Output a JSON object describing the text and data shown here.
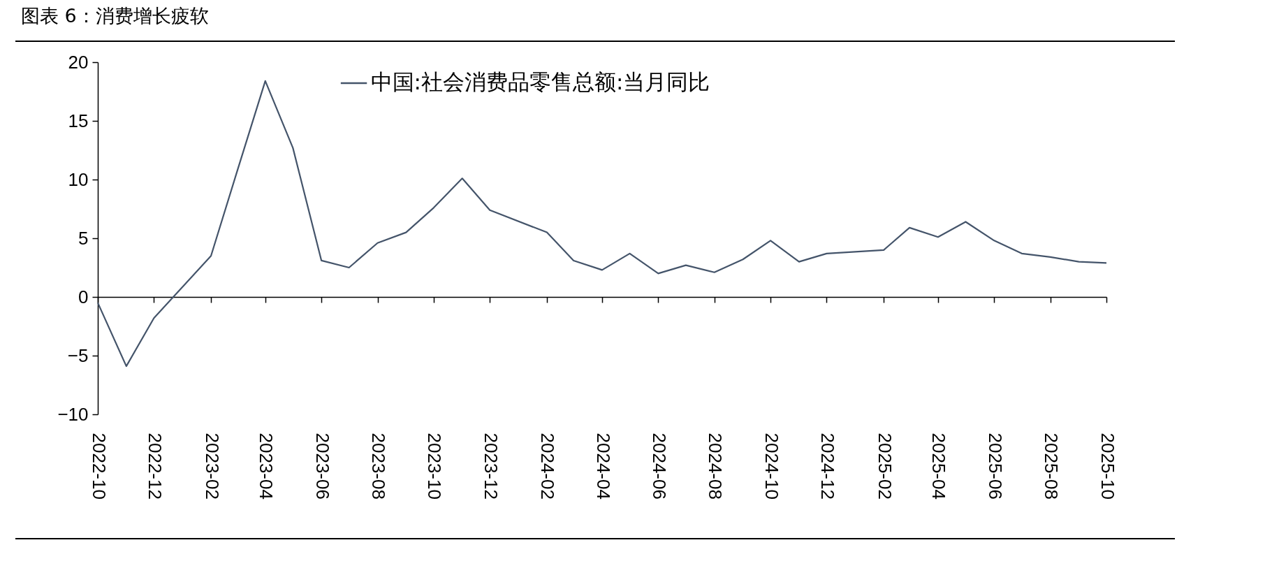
{
  "chart_data": {
    "type": "line",
    "title": "图表 6：消费增长疲软",
    "x": [
      "2022-10",
      "2022-11",
      "2022-12",
      "2023-02",
      "2023-03",
      "2023-04",
      "2023-05",
      "2023-06",
      "2023-07",
      "2023-08",
      "2023-09",
      "2023-10",
      "2023-11",
      "2023-12",
      "2024-02",
      "2024-03",
      "2024-04",
      "2024-05",
      "2024-06",
      "2024-07",
      "2024-08",
      "2024-09",
      "2024-10",
      "2024-11",
      "2024-12",
      "2025-02",
      "2025-03",
      "2025-04",
      "2025-05",
      "2025-06",
      "2025-07",
      "2025-08",
      "2025-09",
      "2025-10"
    ],
    "series": [
      {
        "name": "中国:社会消费品零售总额:当月同比",
        "color": "#44546a",
        "values": [
          -0.5,
          -5.9,
          -1.8,
          3.5,
          10.6,
          18.4,
          12.7,
          3.1,
          2.5,
          4.6,
          5.5,
          7.6,
          10.1,
          7.4,
          5.5,
          3.1,
          2.3,
          3.7,
          2.0,
          2.7,
          2.1,
          3.2,
          4.8,
          3.0,
          3.7,
          4.0,
          5.9,
          5.1,
          6.4,
          4.8,
          3.7,
          3.4,
          3.0,
          2.9
        ]
      }
    ],
    "xlim": [
      "2022-10",
      "2025-10"
    ],
    "xticks": [
      "2022-10",
      "2022-12",
      "2023-02",
      "2023-04",
      "2023-06",
      "2023-08",
      "2023-10",
      "2023-12",
      "2024-02",
      "2024-04",
      "2024-06",
      "2024-08",
      "2024-10",
      "2024-12",
      "2025-02",
      "2025-04",
      "2025-06",
      "2025-08",
      "2025-10"
    ],
    "ylim": [
      -10,
      20
    ],
    "yticks": [
      -10,
      -5,
      0,
      5,
      10,
      15,
      20
    ],
    "legend": "top",
    "marker": "none",
    "line_style": "solid"
  }
}
